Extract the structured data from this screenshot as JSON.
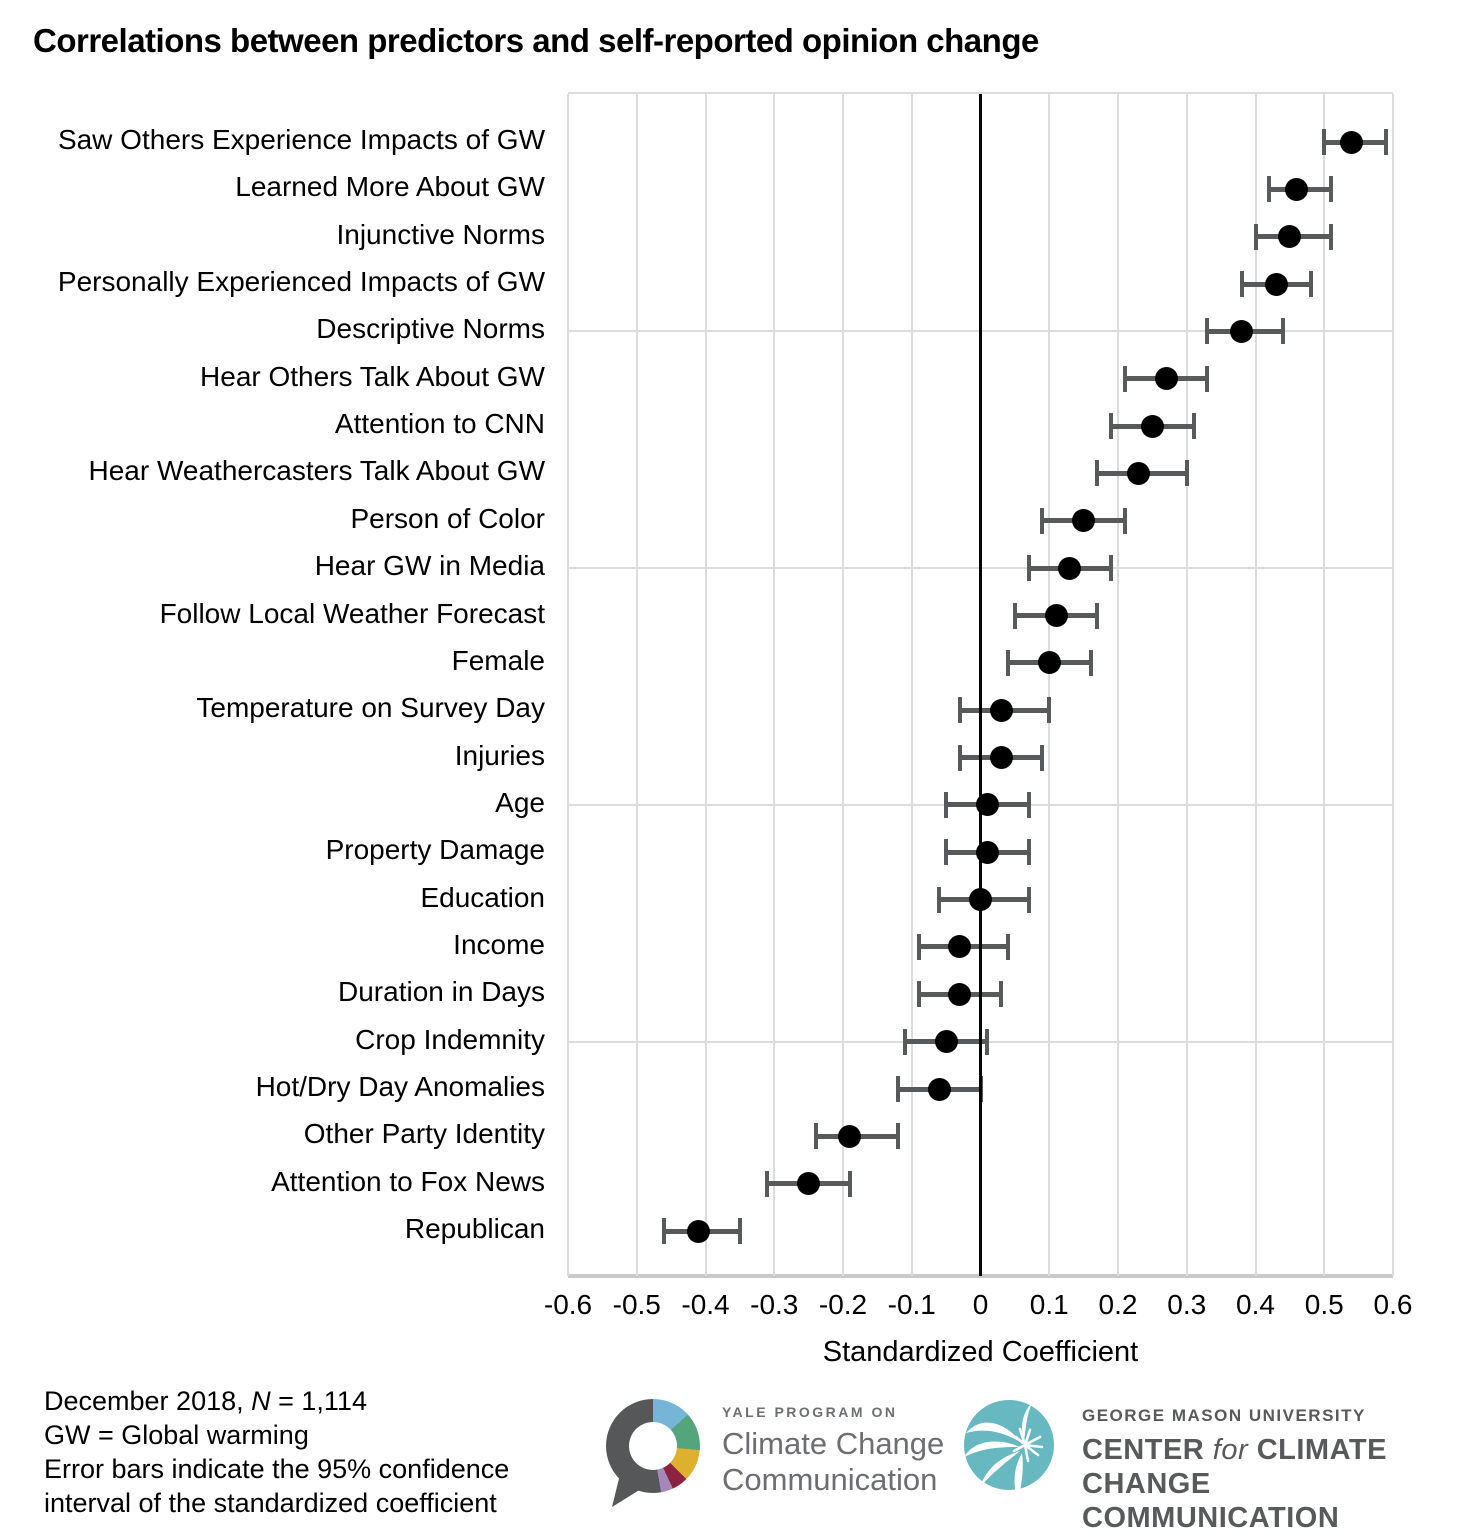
{
  "title": "Correlations between predictors and self-reported opinion change",
  "chart_data": {
    "type": "scatter",
    "subtype": "horizontal-dot-plot-with-error-bars",
    "title": "Correlations between predictors and self-reported opinion change",
    "xlabel": "Standardized Coefficient",
    "xlim": [
      -0.6,
      0.6
    ],
    "x_ticks": [
      -0.6,
      -0.5,
      -0.4,
      -0.3,
      -0.2,
      -0.1,
      0,
      0.1,
      0.2,
      0.3,
      0.4,
      0.5,
      0.6
    ],
    "x_tick_labels": [
      "-0.6",
      "-0.5",
      "-0.4",
      "-0.3",
      "-0.2",
      "-0.1",
      "0",
      "0.1",
      "0.2",
      "0.3",
      "0.4",
      "0.5",
      "0.6"
    ],
    "zero_reference_line": true,
    "grid": true,
    "h_gridline_rows": [
      5,
      10,
      15,
      20
    ],
    "categories": [
      "Saw Others Experience Impacts of GW",
      "Learned More About GW",
      "Injunctive Norms",
      "Personally Experienced Impacts of GW",
      "Descriptive Norms",
      "Hear Others Talk About GW",
      "Attention to CNN",
      "Hear Weathercasters Talk About GW",
      "Person of Color",
      "Hear GW in Media",
      "Follow Local Weather Forecast",
      "Female",
      "Temperature on Survey Day",
      "Injuries",
      "Age",
      "Property Damage",
      "Education",
      "Income",
      "Duration in Days",
      "Crop Indemnity",
      "Hot/Dry Day Anomalies",
      "Other Party Identity",
      "Attention to Fox News",
      "Republican"
    ],
    "values": [
      0.54,
      0.46,
      0.45,
      0.43,
      0.38,
      0.27,
      0.25,
      0.23,
      0.15,
      0.13,
      0.11,
      0.1,
      0.03,
      0.03,
      0.01,
      0.01,
      0.0,
      -0.03,
      -0.03,
      -0.05,
      -0.06,
      -0.19,
      -0.25,
      -0.41
    ],
    "ci_low": [
      0.5,
      0.42,
      0.4,
      0.38,
      0.33,
      0.21,
      0.19,
      0.17,
      0.09,
      0.07,
      0.05,
      0.04,
      -0.03,
      -0.03,
      -0.05,
      -0.05,
      -0.06,
      -0.09,
      -0.09,
      -0.11,
      -0.12,
      -0.24,
      -0.31,
      -0.46
    ],
    "ci_high": [
      0.59,
      0.51,
      0.51,
      0.48,
      0.44,
      0.33,
      0.31,
      0.3,
      0.21,
      0.19,
      0.17,
      0.16,
      0.1,
      0.09,
      0.07,
      0.07,
      0.07,
      0.04,
      0.03,
      0.01,
      0.0,
      -0.12,
      -0.19,
      -0.35
    ],
    "colors": {
      "point": "#000000",
      "error_bar": "#58595b",
      "gridline": "#dcdcdc",
      "zero_line": "#000000",
      "axis_line": "#c9c9c9"
    }
  },
  "footer": {
    "date_pre": "December 2018, ",
    "n_italic": "N",
    "n_post": " = 1,114",
    "gw_note": "GW = Global warming",
    "ci_note_line1": "Error bars indicate the 95% confidence",
    "ci_note_line2": "interval of the standardized coefficient"
  },
  "logos": {
    "yale": {
      "kicker": "YALE PROGRAM ON",
      "line1": "Climate Change",
      "line2": "Communication",
      "ring_colors": [
        "#565759",
        "#76b5d8",
        "#55a57c",
        "#ddb02e",
        "#8c2142",
        "#a687ba"
      ],
      "text_color": "#6d6e71"
    },
    "gmu": {
      "kicker": "GEORGE MASON UNIVERSITY",
      "center_pre": "CENTER ",
      "center_italic": "for",
      "center_post": " CLIMATE CHANGE",
      "line2": "COMMUNICATION",
      "circle_color": "#68b8c1",
      "text_color": "#58595b"
    }
  }
}
